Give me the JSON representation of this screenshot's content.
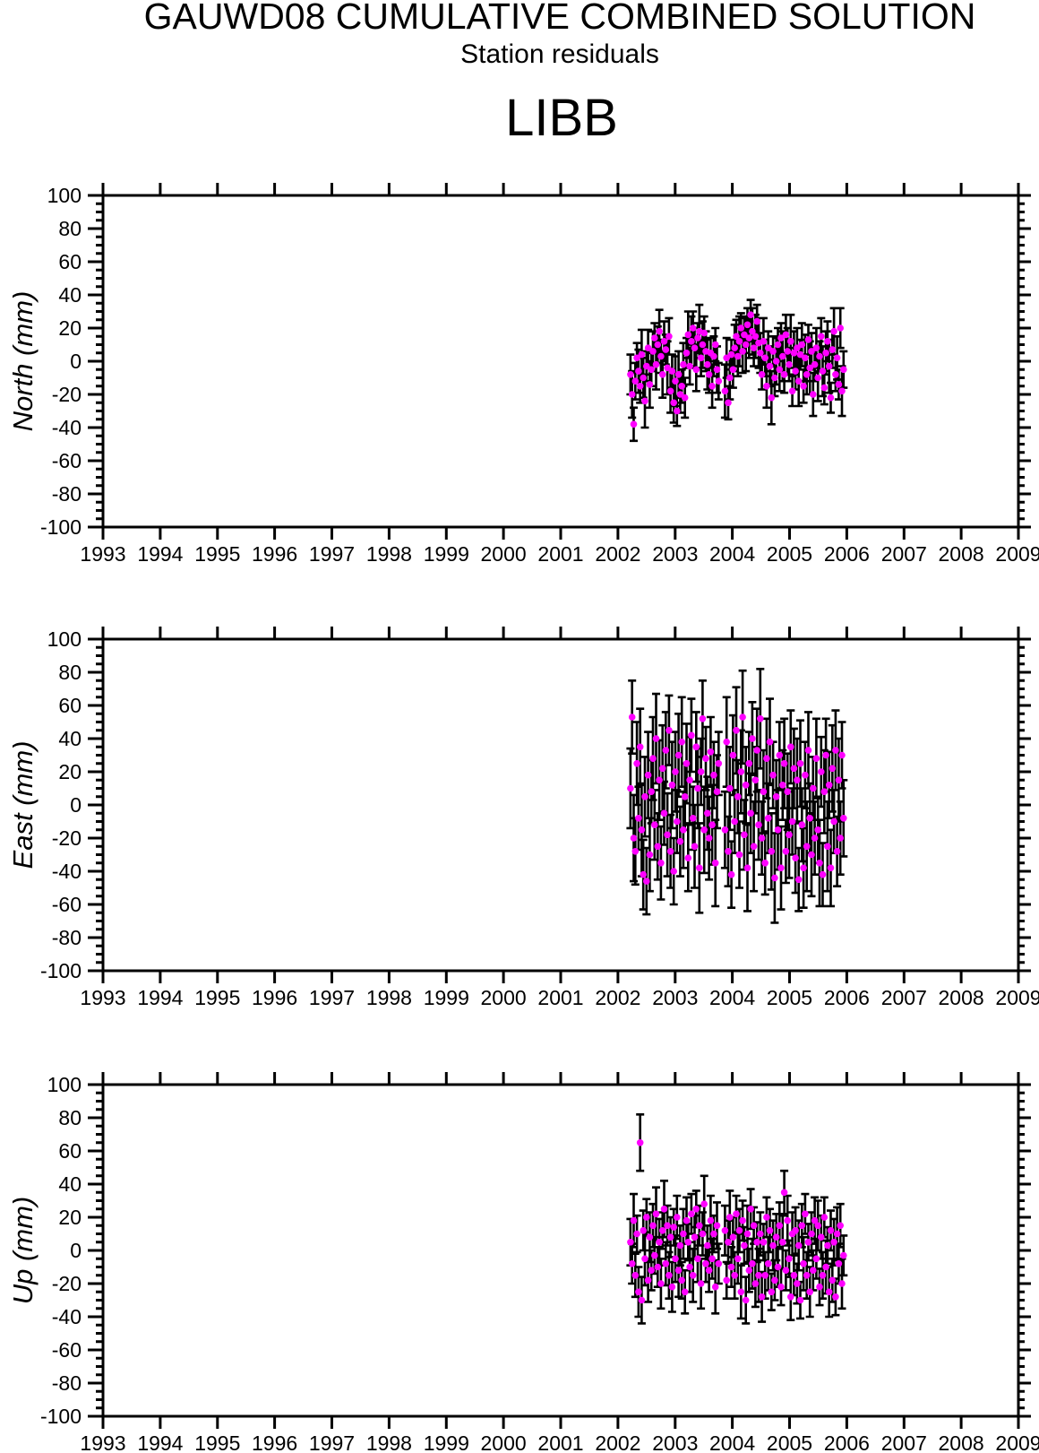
{
  "header": {
    "title": "GAUWD08 CUMULATIVE COMBINED SOLUTION",
    "subtitle": "Station residuals",
    "station": "LIBB"
  },
  "chart_data": {
    "type": "scatter",
    "title": "GAUWD08 CUMULATIVE COMBINED SOLUTION",
    "subtitle": "Station residuals",
    "station": "LIBB",
    "xlabel": "",
    "xlim": [
      1993,
      2009
    ],
    "ylim": [
      -100,
      100
    ],
    "grid": false,
    "legend": "none",
    "marker_color": "#FF00FF",
    "error_bar_color": "#000000",
    "x_ticks": [
      1993,
      1994,
      1995,
      1996,
      1997,
      1998,
      1999,
      2000,
      2001,
      2002,
      2003,
      2004,
      2005,
      2006,
      2007,
      2008,
      2009
    ],
    "x_tick_labels": [
      "1993",
      "1994",
      "1995",
      "1996",
      "1997",
      "1998",
      "1999",
      "2000",
      "2001",
      "2002",
      "2003",
      "2004",
      "2005",
      "2006",
      "2007",
      "2008",
      "2009"
    ],
    "y_ticks": [
      100,
      80,
      60,
      40,
      20,
      0,
      -20,
      -40,
      -60,
      -80,
      -100
    ],
    "y_tick_labels": [
      "100",
      "80",
      "60",
      "40",
      "20",
      "0",
      "-20",
      "-40",
      "-60",
      "-80",
      "-100"
    ],
    "y_tick_step": 20,
    "y_minor_step": 5,
    "epochs": [
      2002.22,
      2002.248,
      2002.276,
      2002.304,
      2002.332,
      2002.36,
      2002.388,
      2002.416,
      2002.444,
      2002.472,
      2002.5,
      2002.528,
      2002.556,
      2002.584,
      2002.612,
      2002.64,
      2002.668,
      2002.696,
      2002.724,
      2002.752,
      2002.78,
      2002.808,
      2002.836,
      2002.864,
      2002.892,
      2002.92,
      2002.948,
      2002.976,
      2003.004,
      2003.032,
      2003.06,
      2003.088,
      2003.116,
      2003.144,
      2003.172,
      2003.2,
      2003.228,
      2003.256,
      2003.284,
      2003.312,
      2003.34,
      2003.368,
      2003.396,
      2003.424,
      2003.452,
      2003.48,
      2003.508,
      2003.536,
      2003.564,
      2003.592,
      2003.62,
      2003.648,
      2003.676,
      2003.704,
      2003.732,
      2003.76,
      2003.872,
      2003.9,
      2003.928,
      2003.956,
      2003.984,
      2004.012,
      2004.04,
      2004.068,
      2004.096,
      2004.124,
      2004.152,
      2004.18,
      2004.208,
      2004.236,
      2004.264,
      2004.292,
      2004.32,
      2004.348,
      2004.376,
      2004.404,
      2004.432,
      2004.46,
      2004.488,
      2004.516,
      2004.544,
      2004.572,
      2004.6,
      2004.628,
      2004.656,
      2004.684,
      2004.712,
      2004.74,
      2004.768,
      2004.796,
      2004.824,
      2004.852,
      2004.88,
      2004.908,
      2004.936,
      2004.964,
      2004.992,
      2005.02,
      2005.048,
      2005.076,
      2005.104,
      2005.132,
      2005.16,
      2005.188,
      2005.216,
      2005.244,
      2005.272,
      2005.3,
      2005.328,
      2005.356,
      2005.384,
      2005.412,
      2005.44,
      2005.468,
      2005.496,
      2005.524,
      2005.552,
      2005.58,
      2005.608,
      2005.636,
      2005.664,
      2005.692,
      2005.72,
      2005.748,
      2005.776,
      2005.804,
      2005.832,
      2005.86,
      2005.888,
      2005.916,
      2005.944
    ],
    "panels": [
      {
        "name": "north",
        "ylabel": "North (mm)",
        "values": [
          -8,
          -20,
          -38,
          -12,
          2,
          -6,
          -15,
          4,
          -10,
          -24,
          -3,
          8,
          -14,
          -5,
          6,
          14,
          -2,
          10,
          18,
          3,
          -8,
          12,
          7,
          -4,
          15,
          -18,
          -6,
          -25,
          -12,
          -30,
          -8,
          -20,
          -15,
          -2,
          -22,
          5,
          16,
          -3,
          12,
          20,
          8,
          -5,
          14,
          18,
          2,
          10,
          17,
          6,
          -2,
          -8,
          5,
          -15,
          3,
          10,
          -5,
          -12,
          -18,
          2,
          -25,
          -10,
          4,
          -5,
          8,
          15,
          3,
          12,
          20,
          6,
          16,
          10,
          22,
          14,
          28,
          18,
          8,
          15,
          24,
          11,
          5,
          -8,
          12,
          2,
          -15,
          8,
          -3,
          -22,
          6,
          -10,
          0,
          10,
          -5,
          14,
          3,
          -8,
          16,
          6,
          -2,
          12,
          -18,
          5,
          -6,
          8,
          -12,
          4,
          10,
          -15,
          2,
          -8,
          13,
          -4,
          6,
          -20,
          -2,
          8,
          -10,
          3,
          15,
          -6,
          -16,
          5,
          12,
          -3,
          -22,
          7,
          18,
          -8,
          2,
          -14,
          20,
          -18,
          -5
        ],
        "errors": [
          12,
          14,
          10,
          11,
          9,
          13,
          10,
          15,
          12,
          16,
          9,
          11,
          14,
          10,
          12,
          9,
          15,
          11,
          13,
          10,
          14,
          12,
          9,
          16,
          11,
          13,
          10,
          12,
          15,
          9,
          14,
          11,
          10,
          13,
          12,
          9,
          14,
          11,
          15,
          10,
          12,
          13,
          9,
          16,
          11,
          14,
          10,
          12,
          15,
          11,
          9,
          13,
          12,
          10,
          14,
          11,
          16,
          12,
          10,
          13,
          9,
          11,
          14,
          10,
          12,
          15,
          9,
          13,
          11,
          16,
          10,
          12,
          9,
          14,
          11,
          13,
          10,
          15,
          12,
          9,
          14,
          11,
          13,
          10,
          12,
          16,
          9,
          11,
          14,
          10,
          13,
          9,
          15,
          11,
          12,
          14,
          10,
          16,
          9,
          13,
          11,
          12,
          15,
          9,
          13,
          10,
          14,
          12,
          9,
          16,
          11,
          13,
          10,
          12,
          14,
          9,
          11,
          15,
          10,
          13,
          12,
          16,
          9,
          11,
          14,
          10,
          13,
          9,
          12,
          15,
          11
        ]
      },
      {
        "name": "east",
        "ylabel": "East (mm)",
        "values": [
          10,
          53,
          -20,
          -28,
          25,
          -8,
          35,
          -15,
          -42,
          5,
          -46,
          18,
          -30,
          8,
          28,
          -12,
          40,
          -25,
          15,
          -35,
          22,
          -5,
          33,
          -18,
          45,
          -28,
          12,
          -40,
          20,
          -10,
          30,
          -22,
          38,
          -15,
          5,
          25,
          -32,
          15,
          42,
          -8,
          -25,
          35,
          10,
          -38,
          20,
          52,
          -15,
          28,
          -5,
          -20,
          32,
          -12,
          18,
          -35,
          8,
          25,
          -15,
          38,
          -28,
          10,
          -42,
          30,
          -10,
          45,
          5,
          -30,
          20,
          53,
          -18,
          12,
          -38,
          25,
          -5,
          40,
          -25,
          15,
          33,
          -12,
          52,
          -20,
          8,
          -35,
          28,
          -8,
          38,
          -28,
          18,
          -44,
          5,
          -15,
          30,
          -38,
          12,
          25,
          -28,
          8,
          -18,
          35,
          -10,
          22,
          -32,
          15,
          -45,
          25,
          -12,
          -38,
          18,
          -25,
          33,
          -8,
          -30,
          10,
          -20,
          28,
          -15,
          -35,
          20,
          -42,
          8,
          30,
          -25,
          12,
          -38,
          22,
          -10,
          33,
          -28,
          15,
          -20,
          30,
          -8
        ],
        "errors": [
          24,
          22,
          26,
          20,
          25,
          19,
          23,
          28,
          21,
          24,
          20,
          26,
          22,
          19,
          25,
          21,
          27,
          20,
          24,
          22,
          26,
          19,
          23,
          25,
          21,
          22,
          26,
          20,
          24,
          19,
          25,
          21,
          27,
          23,
          20,
          24,
          20,
          26,
          22,
          19,
          25,
          21,
          24,
          27,
          20,
          23,
          26,
          19,
          22,
          25,
          21,
          24,
          20,
          26,
          22,
          19,
          23,
          27,
          21,
          25,
          20,
          24,
          19,
          26,
          22,
          20,
          25,
          28,
          21,
          23,
          26,
          19,
          24,
          22,
          27,
          20,
          25,
          21,
          30,
          22,
          25,
          19,
          24,
          21,
          26,
          23,
          20,
          27,
          22,
          24,
          20,
          25,
          21,
          27,
          19,
          23,
          26,
          22,
          20,
          24,
          21,
          25,
          19,
          26,
          22,
          24,
          20,
          27,
          23,
          21,
          25,
          19,
          22,
          24,
          20,
          26,
          21,
          19,
          25,
          22,
          27,
          20,
          23,
          26,
          19,
          24,
          21,
          25,
          22,
          20,
          23
        ]
      },
      {
        "name": "up",
        "ylabel": "Up (mm)",
        "values": [
          5,
          -8,
          18,
          -15,
          10,
          -25,
          65,
          -30,
          12,
          -5,
          20,
          -18,
          8,
          -12,
          15,
          -3,
          22,
          -10,
          5,
          -20,
          12,
          25,
          -8,
          15,
          -15,
          8,
          -22,
          14,
          -5,
          20,
          -12,
          3,
          -18,
          10,
          -25,
          18,
          5,
          -10,
          22,
          -15,
          8,
          25,
          -5,
          15,
          -20,
          10,
          28,
          -8,
          3,
          -12,
          18,
          -5,
          10,
          -22,
          15,
          -8,
          12,
          -18,
          5,
          20,
          -10,
          8,
          -15,
          22,
          -5,
          12,
          -25,
          18,
          3,
          -30,
          10,
          -12,
          25,
          -8,
          15,
          -20,
          5,
          -15,
          10,
          -28,
          5,
          -15,
          20,
          -8,
          12,
          -25,
          3,
          -18,
          8,
          -10,
          15,
          -22,
          5,
          35,
          -12,
          18,
          -5,
          -28,
          10,
          -15,
          12,
          -20,
          3,
          -30,
          15,
          -8,
          22,
          -15,
          5,
          -25,
          10,
          -12,
          18,
          -5,
          15,
          -22,
          8,
          -15,
          20,
          -10,
          3,
          -25,
          12,
          -18,
          5,
          -28,
          10,
          -8,
          15,
          -20,
          -3
        ],
        "errors": [
          14,
          12,
          16,
          13,
          11,
          15,
          17,
          14,
          12,
          16,
          11,
          13,
          15,
          12,
          13,
          11,
          16,
          12,
          14,
          15,
          11,
          17,
          13,
          12,
          14,
          12,
          15,
          11,
          14,
          13,
          16,
          12,
          11,
          15,
          13,
          14,
          11,
          15,
          12,
          16,
          13,
          11,
          14,
          12,
          15,
          13,
          17,
          11,
          12,
          13,
          15,
          12,
          11,
          16,
          14,
          12,
          15,
          11,
          13,
          16,
          12,
          12,
          14,
          11,
          15,
          13,
          16,
          12,
          11,
          14,
          17,
          13,
          12,
          15,
          11,
          14,
          12,
          16,
          13,
          15,
          11,
          14,
          12,
          16,
          13,
          11,
          15,
          12,
          14,
          12,
          14,
          11,
          16,
          13,
          12,
          15,
          11,
          14,
          13,
          12,
          14,
          12,
          15,
          11,
          13,
          16,
          12,
          14,
          11,
          15,
          13,
          12,
          14,
          12,
          15,
          11,
          13,
          14,
          12,
          16,
          11,
          15,
          12,
          13,
          14,
          11,
          16,
          12,
          13,
          15,
          12
        ]
      }
    ]
  }
}
